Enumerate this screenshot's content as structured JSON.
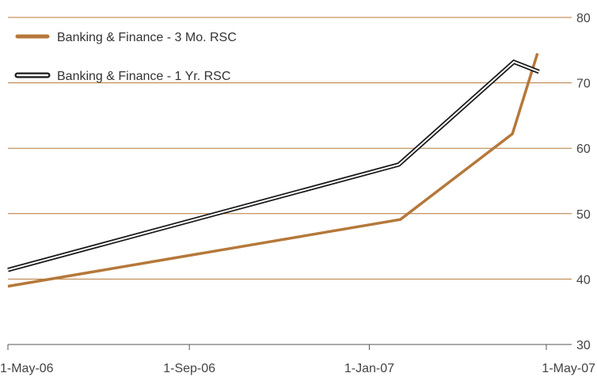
{
  "chart_data": {
    "type": "line",
    "title": "",
    "xlabel": "",
    "ylabel": "",
    "ylim": [
      30,
      80
    ],
    "y_ticks": [
      30,
      40,
      50,
      60,
      70,
      80
    ],
    "x_ticks": [
      "1-May-06",
      "1-Sep-06",
      "1-Jan-07",
      "1-May-07"
    ],
    "x_tick_dates": [
      "2006-05-01",
      "2006-09-01",
      "2007-01-01",
      "2007-05-01"
    ],
    "grid": true,
    "grid_color": "#b5783a",
    "legend_position": "top-left",
    "series": [
      {
        "name": "Banking & Finance - 3 Mo. RSC",
        "color": "#b5783a",
        "style": "solid",
        "points": [
          {
            "date": "2006-05-01",
            "value": 38.9
          },
          {
            "date": "2007-01-22",
            "value": 49.1
          },
          {
            "date": "2007-04-08",
            "value": 62.2
          },
          {
            "date": "2007-04-25",
            "value": 74.5
          }
        ]
      },
      {
        "name": "Banking & Finance - 1 Yr. RSC",
        "color": "#1a1a1a",
        "style": "double",
        "points": [
          {
            "date": "2006-05-01",
            "value": 41.4
          },
          {
            "date": "2007-01-21",
            "value": 57.5
          },
          {
            "date": "2007-04-09",
            "value": 73.2
          },
          {
            "date": "2007-04-26",
            "value": 71.7
          }
        ]
      }
    ]
  }
}
